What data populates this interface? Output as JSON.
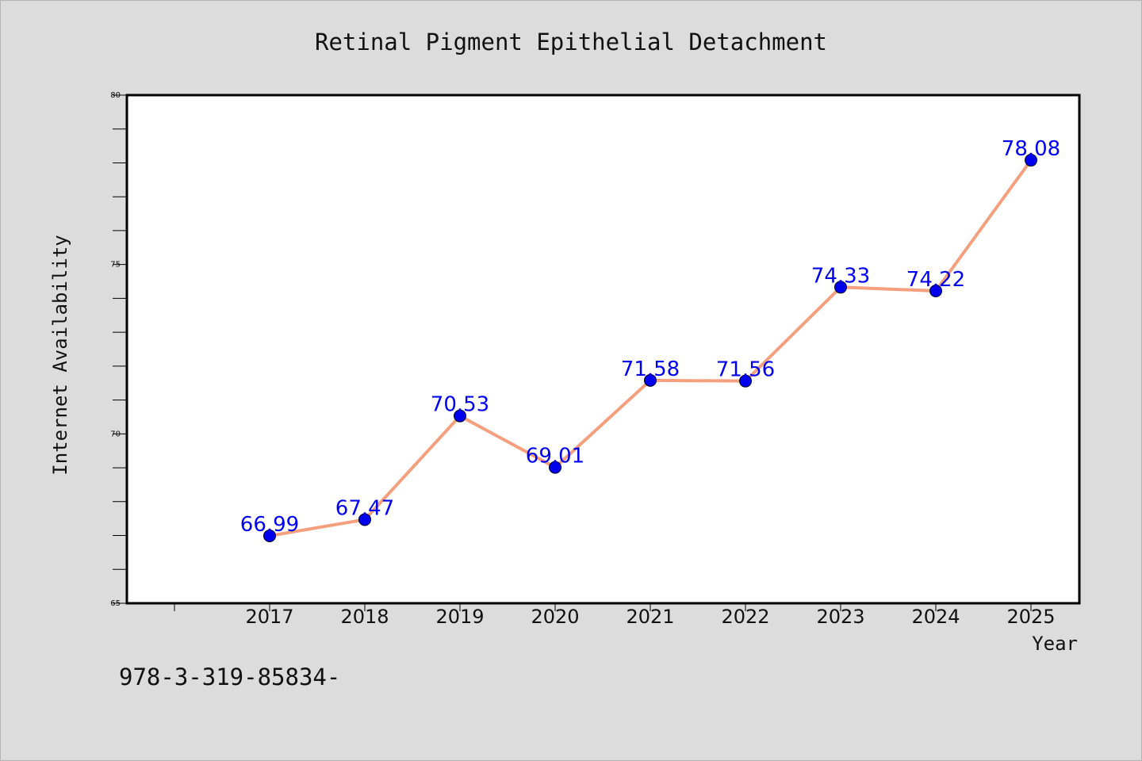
{
  "chart_data": {
    "type": "line",
    "title": "Retinal Pigment Epithelial Detachment",
    "xlabel": "Year",
    "ylabel": "Internet Availability",
    "x": [
      "2017",
      "2018",
      "2019",
      "2020",
      "2021",
      "2022",
      "2023",
      "2024",
      "2025"
    ],
    "series": [
      {
        "values": [
          66.99,
          67.47,
          70.53,
          69.01,
          71.58,
          71.56,
          74.33,
          74.22,
          78.08
        ],
        "labels": [
          "66.99",
          "67.47",
          "70.53",
          "69.01",
          "71.58",
          "71.56",
          "74.33",
          "74.22",
          "78.08"
        ]
      }
    ],
    "ylim": [
      65,
      80
    ],
    "yticks": [
      "65",
      "70",
      "75",
      "80"
    ],
    "grid": false,
    "legend": "none",
    "line_color": "#f4a07f",
    "marker_color": "#0000ee",
    "label_color": "#0000ee"
  },
  "footnote": "978-3-319-85834-"
}
